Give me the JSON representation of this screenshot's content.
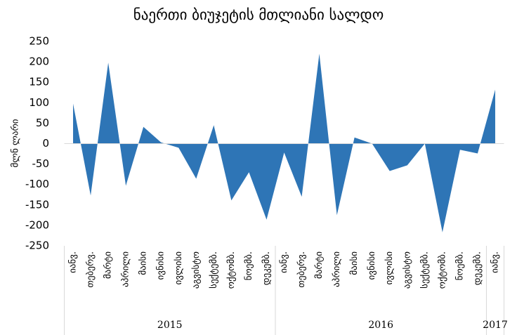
{
  "chart_data": {
    "type": "area",
    "title": "ნაერთი ბიუჯეტის მთლიანი სალდო",
    "y_label": "მლნ ლარი",
    "category_groups": [
      {
        "name": "2015",
        "categories": [
          "იანვ.",
          "თებერვ.",
          "მარტი",
          "აპრილი",
          "მაისი",
          "ივნისი",
          "ივლისი",
          "აგვისტო",
          "სექტემბ.",
          "ოქტომბ.",
          "ნოემბ.",
          "დეკემბ."
        ]
      },
      {
        "name": "2016",
        "categories": [
          "იანვ.",
          "თებერვ.",
          "მარტი",
          "აპრილი",
          "მაისი",
          "ივნისი",
          "ივლისი",
          "აგვისტო",
          "სექტემბ.",
          "ოქტომბ.",
          "ნოემბ.",
          "დეკემბ."
        ]
      },
      {
        "name": "2017",
        "categories": [
          "იანვ."
        ]
      }
    ],
    "values": [
      98,
      -127,
      198,
      -103,
      41,
      3,
      -10,
      -86,
      45,
      -139,
      -70,
      -186,
      -22,
      -130,
      220,
      -175,
      15,
      0,
      -67,
      -53,
      0,
      -217,
      -15,
      -24,
      132
    ],
    "color": "#2e75b6",
    "ylim": [
      -250,
      250
    ],
    "yticks": [
      -250,
      -200,
      -150,
      -100,
      -50,
      0,
      50,
      100,
      150,
      200,
      250
    ],
    "grid": false
  }
}
